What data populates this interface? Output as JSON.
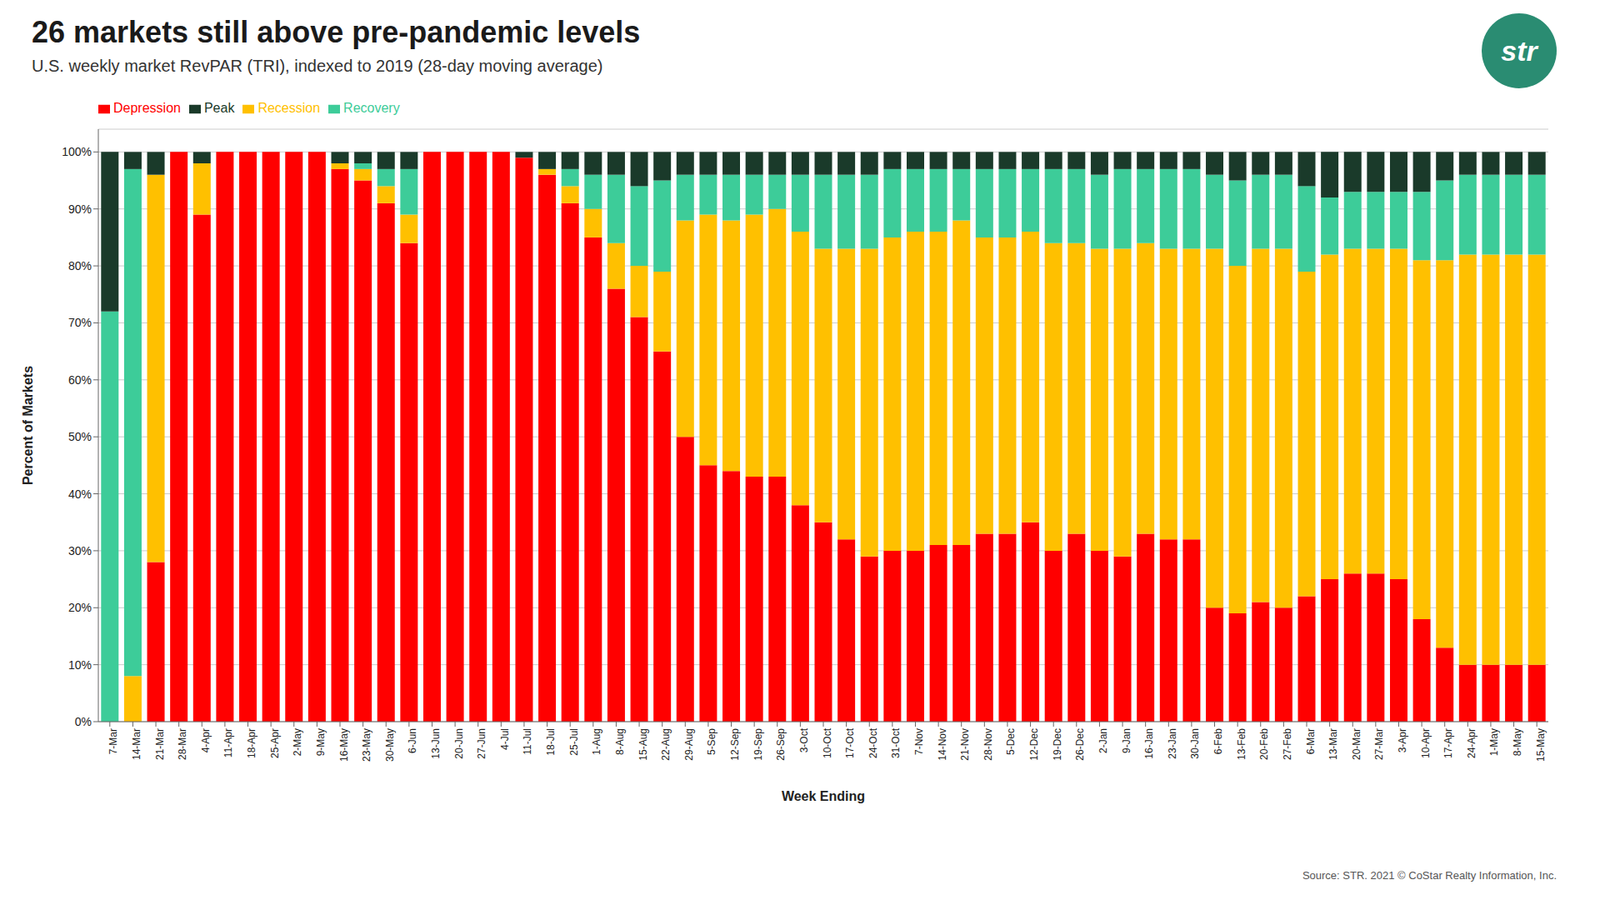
{
  "chart_data": {
    "type": "bar",
    "stacked": true,
    "title": "26 markets still above pre-pandemic levels",
    "subtitle": "U.S. weekly market RevPAR (TRI), indexed to 2019 (28-day moving average)",
    "annotations": [
      "Source: STR. 2021 © CoStar Realty Information, Inc.",
      "str"
    ],
    "xlabel": "Week Ending",
    "ylabel": "Percent of Markets",
    "categories": [
      "7-Mar",
      "14-Mar",
      "21-Mar",
      "28-Mar",
      "4-Apr",
      "11-Apr",
      "18-Apr",
      "25-Apr",
      "2-May",
      "9-May",
      "16-May",
      "23-May",
      "30-May",
      "6-Jun",
      "13-Jun",
      "20-Jun",
      "27-Jun",
      "4-Jul",
      "11-Jul",
      "18-Jul",
      "25-Jul",
      "1-Aug",
      "8-Aug",
      "15-Aug",
      "22-Aug",
      "29-Aug",
      "5-Sep",
      "12-Sep",
      "19-Sep",
      "26-Sep",
      "3-Oct",
      "10-Oct",
      "17-Oct",
      "24-Oct",
      "31-Oct",
      "7-Nov",
      "14-Nov",
      "21-Nov",
      "28-Nov",
      "5-Dec",
      "12-Dec",
      "19-Dec",
      "26-Dec",
      "2-Jan",
      "9-Jan",
      "16-Jan",
      "23-Jan",
      "30-Jan",
      "6-Feb",
      "13-Feb",
      "20-Feb",
      "27-Feb",
      "6-Mar",
      "13-Mar",
      "20-Mar",
      "27-Mar",
      "3-Apr",
      "10-Apr",
      "17-Apr",
      "24-Apr",
      "1-May",
      "8-May",
      "15-May"
    ],
    "series": [
      {
        "name": "Depression",
        "color": "#ff0000",
        "values": [
          0,
          0,
          28,
          100,
          89,
          100,
          100,
          100,
          100,
          100,
          97,
          95,
          91,
          84,
          100,
          100,
          100,
          100,
          99,
          96,
          91,
          85,
          76,
          71,
          65,
          50,
          45,
          44,
          43,
          43,
          38,
          35,
          32,
          29,
          30,
          30,
          31,
          31,
          33,
          33,
          35,
          30,
          33,
          30,
          29,
          33,
          32,
          32,
          20,
          19,
          21,
          20,
          22,
          25,
          26,
          26,
          25,
          18,
          13,
          10,
          10,
          10,
          10
        ]
      },
      {
        "name": "Recession",
        "color": "#ffc000",
        "values": [
          0,
          8,
          68,
          0,
          9,
          0,
          0,
          0,
          0,
          0,
          1,
          2,
          3,
          5,
          0,
          0,
          0,
          0,
          0,
          1,
          3,
          5,
          8,
          9,
          14,
          38,
          44,
          44,
          46,
          47,
          48,
          48,
          51,
          54,
          55,
          56,
          55,
          57,
          52,
          52,
          51,
          54,
          51,
          53,
          54,
          51,
          51,
          51,
          63,
          61,
          62,
          63,
          57,
          57,
          57,
          57,
          58,
          63,
          68,
          72,
          72,
          72,
          72
        ]
      },
      {
        "name": "Recovery",
        "color": "#3dcc99",
        "values": [
          72,
          89,
          0,
          0,
          0,
          0,
          0,
          0,
          0,
          0,
          0,
          1,
          3,
          8,
          0,
          0,
          0,
          0,
          0,
          0,
          3,
          6,
          12,
          14,
          16,
          8,
          7,
          8,
          7,
          6,
          10,
          13,
          13,
          13,
          12,
          11,
          11,
          9,
          12,
          12,
          11,
          13,
          13,
          13,
          14,
          13,
          14,
          14,
          13,
          15,
          13,
          13,
          15,
          10,
          10,
          10,
          10,
          12,
          14,
          14,
          14,
          14,
          14
        ]
      },
      {
        "name": "Peak",
        "color": "#1a3a2a",
        "values": [
          28,
          3,
          4,
          0,
          2,
          0,
          0,
          0,
          0,
          0,
          2,
          2,
          3,
          3,
          0,
          0,
          0,
          0,
          1,
          3,
          3,
          4,
          4,
          6,
          5,
          4,
          4,
          4,
          4,
          4,
          4,
          4,
          4,
          4,
          3,
          3,
          3,
          3,
          3,
          3,
          3,
          3,
          3,
          4,
          3,
          3,
          3,
          3,
          4,
          5,
          4,
          4,
          6,
          8,
          7,
          7,
          7,
          7,
          5,
          4,
          4,
          4,
          4
        ]
      }
    ],
    "ylim": [
      0,
      104
    ],
    "yticks": [
      {
        "value": 0,
        "label": "0%"
      },
      {
        "value": 10,
        "label": "10%"
      },
      {
        "value": 20,
        "label": "20%"
      },
      {
        "value": 30,
        "label": "30%"
      },
      {
        "value": 40,
        "label": "40%"
      },
      {
        "value": 50,
        "label": "50%"
      },
      {
        "value": 60,
        "label": "60%"
      },
      {
        "value": 70,
        "label": "70%"
      },
      {
        "value": 80,
        "label": "80%"
      },
      {
        "value": 90,
        "label": "90%"
      },
      {
        "value": 100,
        "label": "100%"
      }
    ],
    "grid": true,
    "legend": "upper left"
  }
}
